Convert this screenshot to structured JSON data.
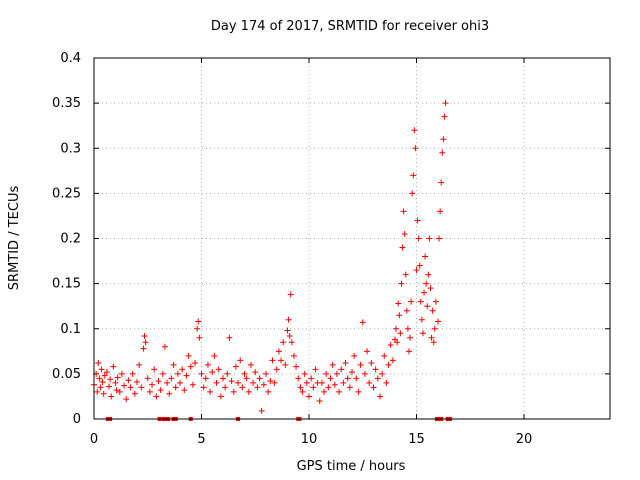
{
  "chart_data": {
    "type": "scatter",
    "title": "Day 174 of 2017, SRMTID for receiver ohi3",
    "xlabel": "GPS time / hours",
    "ylabel": "SRMTID / TECUs",
    "xlim": [
      0,
      24
    ],
    "ylim": [
      0,
      0.4
    ],
    "grid": true,
    "xticks": [
      0,
      5,
      10,
      15,
      20
    ],
    "xtick_labels": [
      "0",
      "5",
      "10",
      "15",
      "20"
    ],
    "yticks": [
      0,
      0.05,
      0.1,
      0.15,
      0.2,
      0.25,
      0.3,
      0.35,
      0.4
    ],
    "ytick_labels": [
      "0",
      "0.05",
      "0.1",
      "0.15",
      "0.2",
      "0.25",
      "0.3",
      "0.35",
      "0.4"
    ],
    "series": [
      {
        "name": "SRMTID",
        "color": "#ff0000",
        "marker": "plus",
        "points": [
          [
            0.0,
            0.038
          ],
          [
            0.1,
            0.05
          ],
          [
            0.15,
            0.03
          ],
          [
            0.2,
            0.062
          ],
          [
            0.25,
            0.045
          ],
          [
            0.3,
            0.035
          ],
          [
            0.35,
            0.055
          ],
          [
            0.4,
            0.041
          ],
          [
            0.45,
            0.028
          ],
          [
            0.5,
            0.048
          ],
          [
            0.6,
            0.052
          ],
          [
            0.7,
            0.036
          ],
          [
            0.75,
            0.044
          ],
          [
            0.8,
            0.025
          ],
          [
            0.9,
            0.058
          ],
          [
            1.0,
            0.04
          ],
          [
            1.05,
            0.032
          ],
          [
            1.1,
            0.046
          ],
          [
            1.2,
            0.03
          ],
          [
            1.3,
            0.05
          ],
          [
            1.4,
            0.037
          ],
          [
            1.5,
            0.022
          ],
          [
            1.6,
            0.043
          ],
          [
            1.7,
            0.035
          ],
          [
            1.8,
            0.05
          ],
          [
            1.9,
            0.028
          ],
          [
            2.0,
            0.041
          ],
          [
            2.1,
            0.06
          ],
          [
            2.2,
            0.035
          ],
          [
            2.3,
            0.078
          ],
          [
            2.35,
            0.092
          ],
          [
            2.4,
            0.085
          ],
          [
            2.5,
            0.045
          ],
          [
            2.6,
            0.03
          ],
          [
            2.7,
            0.038
          ],
          [
            2.8,
            0.055
          ],
          [
            2.9,
            0.025
          ],
          [
            3.0,
            0.042
          ],
          [
            3.1,
            0.032
          ],
          [
            3.2,
            0.05
          ],
          [
            3.3,
            0.08
          ],
          [
            3.4,
            0.04
          ],
          [
            3.5,
            0.028
          ],
          [
            3.6,
            0.045
          ],
          [
            3.7,
            0.06
          ],
          [
            3.8,
            0.035
          ],
          [
            3.9,
            0.05
          ],
          [
            4.0,
            0.04
          ],
          [
            4.1,
            0.055
          ],
          [
            4.2,
            0.032
          ],
          [
            4.3,
            0.048
          ],
          [
            4.4,
            0.07
          ],
          [
            4.5,
            0.058
          ],
          [
            4.6,
            0.038
          ],
          [
            4.7,
            0.062
          ],
          [
            4.8,
            0.1
          ],
          [
            4.85,
            0.108
          ],
          [
            4.9,
            0.09
          ],
          [
            5.0,
            0.05
          ],
          [
            5.1,
            0.035
          ],
          [
            5.2,
            0.045
          ],
          [
            5.3,
            0.06
          ],
          [
            5.4,
            0.03
          ],
          [
            5.5,
            0.052
          ],
          [
            5.6,
            0.07
          ],
          [
            5.7,
            0.04
          ],
          [
            5.8,
            0.055
          ],
          [
            5.9,
            0.025
          ],
          [
            6.0,
            0.045
          ],
          [
            6.1,
            0.035
          ],
          [
            6.2,
            0.05
          ],
          [
            6.3,
            0.09
          ],
          [
            6.4,
            0.042
          ],
          [
            6.5,
            0.03
          ],
          [
            6.6,
            0.058
          ],
          [
            6.7,
            0.04
          ],
          [
            6.8,
            0.065
          ],
          [
            6.9,
            0.035
          ],
          [
            7.0,
            0.05
          ],
          [
            7.1,
            0.045
          ],
          [
            7.2,
            0.03
          ],
          [
            7.3,
            0.06
          ],
          [
            7.4,
            0.04
          ],
          [
            7.5,
            0.052
          ],
          [
            7.6,
            0.035
          ],
          [
            7.7,
            0.045
          ],
          [
            7.8,
            0.009
          ],
          [
            7.9,
            0.038
          ],
          [
            8.0,
            0.05
          ],
          [
            8.1,
            0.03
          ],
          [
            8.2,
            0.042
          ],
          [
            8.3,
            0.065
          ],
          [
            8.4,
            0.04
          ],
          [
            8.5,
            0.055
          ],
          [
            8.6,
            0.075
          ],
          [
            8.7,
            0.065
          ],
          [
            8.8,
            0.085
          ],
          [
            8.9,
            0.06
          ],
          [
            9.0,
            0.098
          ],
          [
            9.05,
            0.11
          ],
          [
            9.1,
            0.092
          ],
          [
            9.15,
            0.138
          ],
          [
            9.2,
            0.085
          ],
          [
            9.3,
            0.07
          ],
          [
            9.4,
            0.058
          ],
          [
            9.5,
            0.045
          ],
          [
            9.6,
            0.035
          ],
          [
            9.7,
            0.03
          ],
          [
            9.8,
            0.05
          ],
          [
            9.9,
            0.04
          ],
          [
            10.0,
            0.025
          ],
          [
            10.1,
            0.045
          ],
          [
            10.2,
            0.035
          ],
          [
            10.3,
            0.055
          ],
          [
            10.4,
            0.04
          ],
          [
            10.5,
            0.02
          ],
          [
            10.6,
            0.04
          ],
          [
            10.7,
            0.03
          ],
          [
            10.8,
            0.05
          ],
          [
            10.9,
            0.035
          ],
          [
            11.0,
            0.045
          ],
          [
            11.1,
            0.06
          ],
          [
            11.2,
            0.038
          ],
          [
            11.3,
            0.05
          ],
          [
            11.4,
            0.03
          ],
          [
            11.5,
            0.055
          ],
          [
            11.6,
            0.04
          ],
          [
            11.7,
            0.062
          ],
          [
            11.8,
            0.045
          ],
          [
            11.9,
            0.035
          ],
          [
            12.0,
            0.052
          ],
          [
            12.1,
            0.07
          ],
          [
            12.2,
            0.045
          ],
          [
            12.3,
            0.03
          ],
          [
            12.4,
            0.06
          ],
          [
            12.5,
            0.107
          ],
          [
            12.6,
            0.05
          ],
          [
            12.7,
            0.075
          ],
          [
            12.8,
            0.04
          ],
          [
            12.9,
            0.062
          ],
          [
            13.0,
            0.035
          ],
          [
            13.1,
            0.055
          ],
          [
            13.2,
            0.045
          ],
          [
            13.3,
            0.025
          ],
          [
            13.4,
            0.05
          ],
          [
            13.5,
            0.07
          ],
          [
            13.6,
            0.04
          ],
          [
            13.7,
            0.06
          ],
          [
            13.8,
            0.082
          ],
          [
            13.9,
            0.065
          ],
          [
            14.0,
            0.088
          ],
          [
            14.05,
            0.1
          ],
          [
            14.1,
            0.085
          ],
          [
            14.15,
            0.128
          ],
          [
            14.2,
            0.115
          ],
          [
            14.25,
            0.095
          ],
          [
            14.3,
            0.15
          ],
          [
            14.35,
            0.19
          ],
          [
            14.4,
            0.23
          ],
          [
            14.45,
            0.205
          ],
          [
            14.5,
            0.16
          ],
          [
            14.55,
            0.12
          ],
          [
            14.6,
            0.1
          ],
          [
            14.65,
            0.075
          ],
          [
            14.7,
            0.09
          ],
          [
            14.75,
            0.13
          ],
          [
            14.8,
            0.25
          ],
          [
            14.85,
            0.27
          ],
          [
            14.9,
            0.32
          ],
          [
            14.95,
            0.3
          ],
          [
            15.0,
            0.165
          ],
          [
            15.05,
            0.22
          ],
          [
            15.1,
            0.2
          ],
          [
            15.15,
            0.17
          ],
          [
            15.2,
            0.13
          ],
          [
            15.25,
            0.11
          ],
          [
            15.3,
            0.095
          ],
          [
            15.35,
            0.14
          ],
          [
            15.4,
            0.18
          ],
          [
            15.45,
            0.15
          ],
          [
            15.5,
            0.125
          ],
          [
            15.55,
            0.16
          ],
          [
            15.6,
            0.2
          ],
          [
            15.65,
            0.145
          ],
          [
            15.7,
            0.09
          ],
          [
            15.75,
            0.12
          ],
          [
            15.8,
            0.085
          ],
          [
            15.85,
            0.1
          ],
          [
            15.9,
            0.13
          ],
          [
            16.0,
            0.108
          ],
          [
            16.05,
            0.2
          ],
          [
            16.1,
            0.23
          ],
          [
            16.15,
            0.262
          ],
          [
            16.2,
            0.295
          ],
          [
            16.25,
            0.31
          ],
          [
            16.3,
            0.335
          ],
          [
            16.35,
            0.35
          ]
        ]
      }
    ],
    "gap_markers": {
      "y": 0,
      "x": [
        0.65,
        0.7,
        0.75,
        3.05,
        3.25,
        3.35,
        3.45,
        3.7,
        3.8,
        4.5,
        6.7,
        9.5,
        9.55,
        15.95,
        16.05,
        16.15,
        16.45,
        16.55
      ]
    }
  }
}
